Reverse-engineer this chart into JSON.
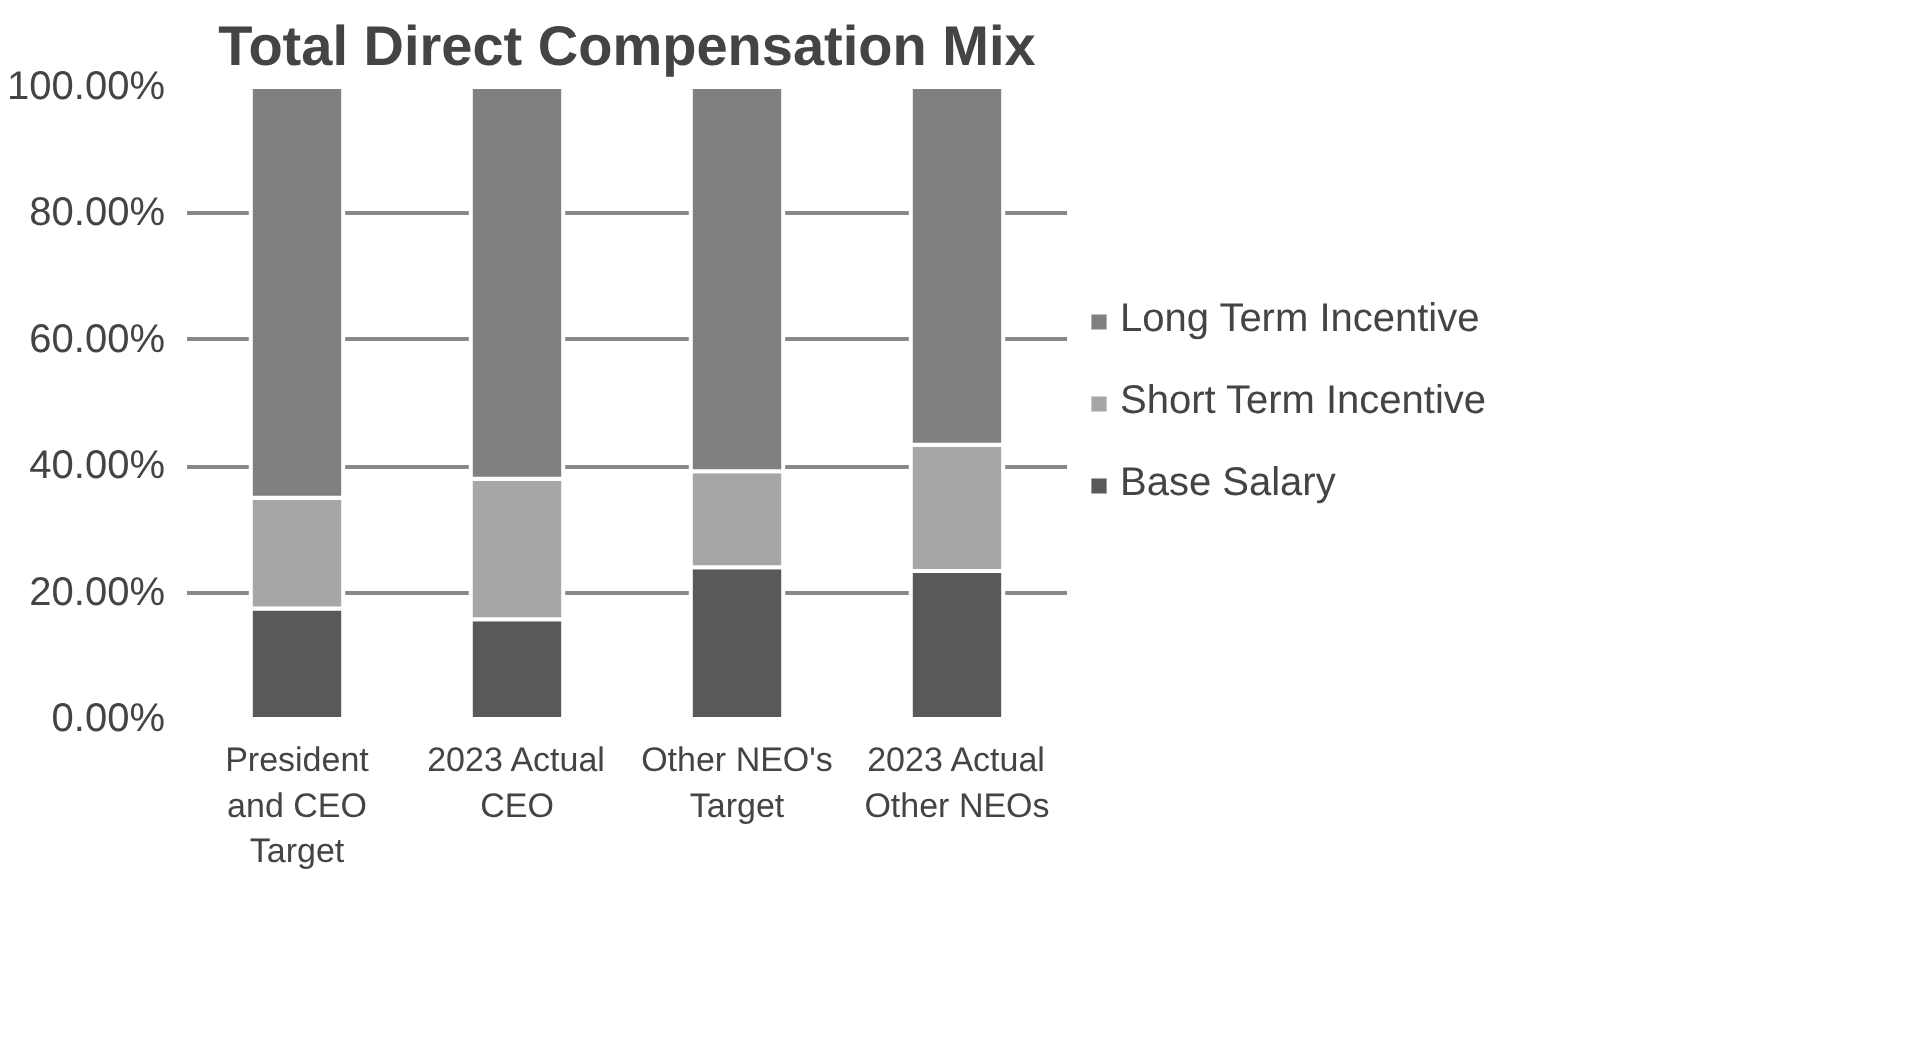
{
  "chart_data": {
    "type": "bar",
    "title": "Total Direct Compensation Mix",
    "stacked": true,
    "categories": [
      "President and CEO Target",
      "2023 Actual CEO",
      "Other NEO's Target",
      "2023 Actual Other NEOs"
    ],
    "series": [
      {
        "name": "Base Salary",
        "color": "#595959",
        "values": [
          17.5,
          15.8,
          24,
          23.4
        ]
      },
      {
        "name": "Short Term Incentive",
        "color": "#a6a6a6",
        "values": [
          17.5,
          22.2,
          15.2,
          20
        ]
      },
      {
        "name": "Long Term Incentive",
        "color": "#808080",
        "values": [
          65,
          62,
          60.8,
          56.6
        ]
      }
    ],
    "ylim": [
      0,
      100
    ],
    "yticks": [
      {
        "value": 0,
        "label": "0.00%"
      },
      {
        "value": 20,
        "label": "20.00%"
      },
      {
        "value": 40,
        "label": "40.00%"
      },
      {
        "value": 60,
        "label": "60.00%"
      },
      {
        "value": 80,
        "label": "80.00%"
      },
      {
        "value": 100,
        "label": "100.00%"
      }
    ],
    "grid": "y",
    "legend": "right"
  }
}
